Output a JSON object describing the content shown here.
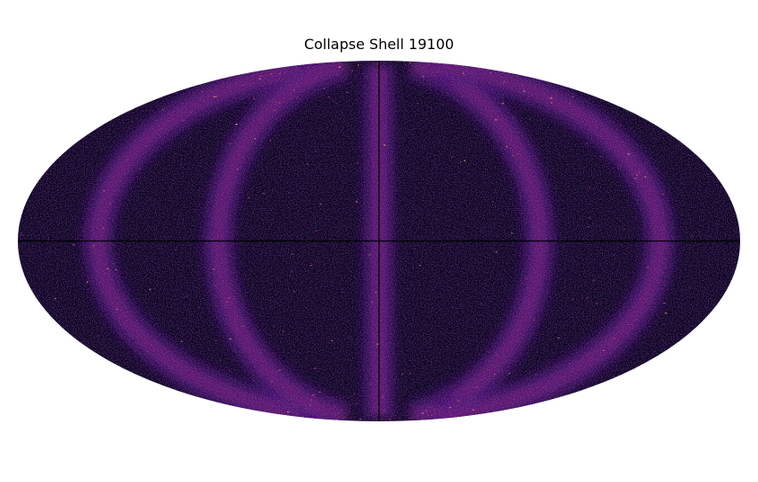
{
  "chart_data": {
    "type": "heatmap",
    "title": "Collapse Shell 19100",
    "projection": "mollweide",
    "colormap": "magma",
    "grid": false,
    "legend": "none",
    "colors": {
      "background": "#ffffff",
      "map_dark": "#0b0424",
      "map_mid": "#3b0f70",
      "map_bright": "#8c2981",
      "map_hot": "#de4968",
      "map_peak": "#fe9f6d",
      "seam": "#000004"
    },
    "features": {
      "bright_arc_longitudes_deg": [
        -140,
        -80,
        0,
        80,
        140
      ],
      "seam_longitude_deg": 0,
      "seam_latitude_deg": 0
    }
  }
}
